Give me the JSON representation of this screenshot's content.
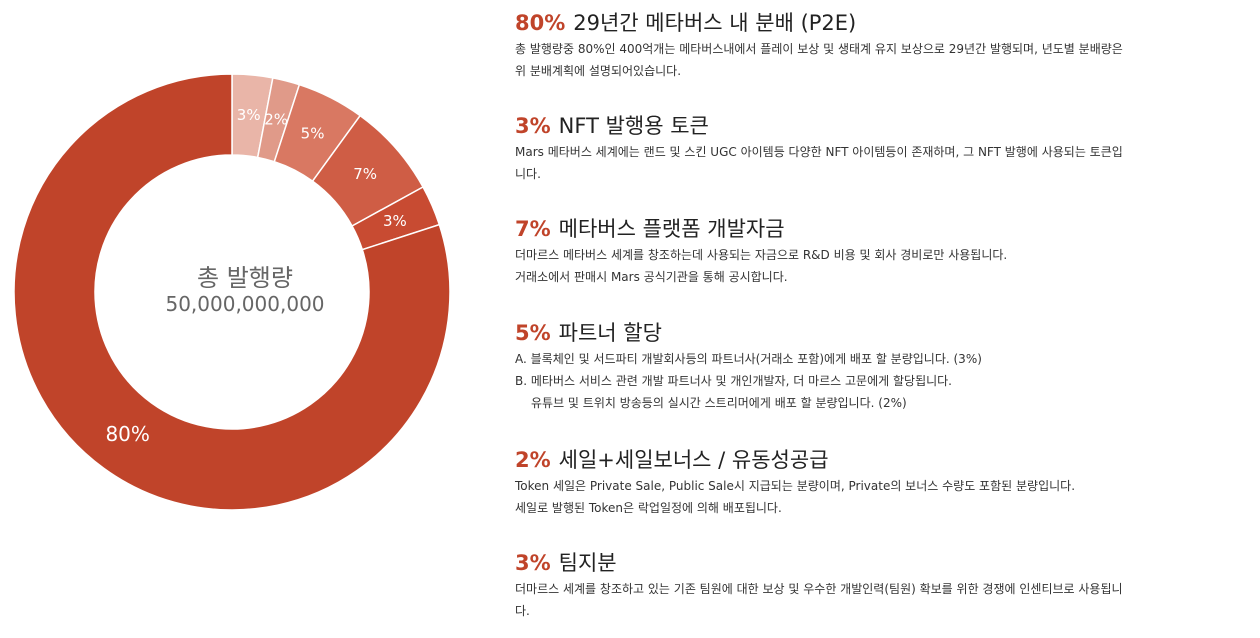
{
  "chart_data": {
    "type": "pie",
    "donut": true,
    "center_title": "총 발행량",
    "center_value": "50,000,000,000",
    "slices": [
      {
        "value": 3,
        "label": "3%",
        "color": "#e9b5a8"
      },
      {
        "value": 2,
        "label": "2%",
        "color": "#e09a89"
      },
      {
        "value": 5,
        "label": "5%",
        "color": "#d97862"
      },
      {
        "value": 7,
        "label": "7%",
        "color": "#cf5d45"
      },
      {
        "value": 3,
        "label": "3%",
        "color": "#c84b32"
      },
      {
        "value": 80,
        "label": "80%",
        "color": "#c0442a"
      }
    ]
  },
  "allocations": [
    {
      "pct": "80%",
      "title": "29년간 메타버스 내 분배 (P2E)",
      "lines": [
        "총 발행량중 80%인 400억개는 메타버스내에서 플레이 보상 및 생태계 유지 보상으로 29년간 발행되며, 년도별 분배량은",
        "위 분배계획에 설명되어있습니다."
      ]
    },
    {
      "pct": "3%",
      "title": "NFT 발행용 토큰",
      "lines": [
        "Mars 메타버스 세계에는 랜드 및 스킨 UGC 아이템등 다양한 NFT 아이템등이 존재하며, 그 NFT 발행에 사용되는 토큰입",
        "니다."
      ]
    },
    {
      "pct": "7%",
      "title": "메타버스 플랫폼 개발자금",
      "lines": [
        "더마르스 메타버스 세계를 창조하는데 사용되는 자금으로 R&D 비용 및 회사 경비로만 사용됩니다.",
        "거래소에서 판매시 Mars 공식기관을 통해 공시합니다."
      ]
    },
    {
      "pct": "5%",
      "title": "파트너 할당",
      "lines": [
        "A. 블록체인 및 서드파티 개발회사등의 파트너사(거래소 포함)에게 배포 할 분량입니다. (3%)",
        "B. 메타버스 서비스 관련 개발 파트너사 및 개인개발자, 더 마르스 고문에게 할당됩니다.",
        "유튜브 및 트위치 방송등의 실시간 스트리머에게 배포 할 분량입니다. (2%)"
      ]
    },
    {
      "pct": "2%",
      "title": "세일+세일보너스 / 유동성공급",
      "lines": [
        "Token 세일은 Private Sale, Public Sale시 지급되는 분량이며, Private의 보너스 수량도 포함된 분량입니다.",
        "세일로 발행된 Token은 락업일정에 의해 배포됩니다."
      ]
    },
    {
      "pct": "3%",
      "title": "팀지분",
      "lines": [
        "더마르스 세계를 창조하고 있는 기존 팀원에 대한 보상 및 우수한 개발인력(팀원) 확보를 위한 경쟁에 인센티브로 사용됩니",
        "다."
      ]
    }
  ]
}
